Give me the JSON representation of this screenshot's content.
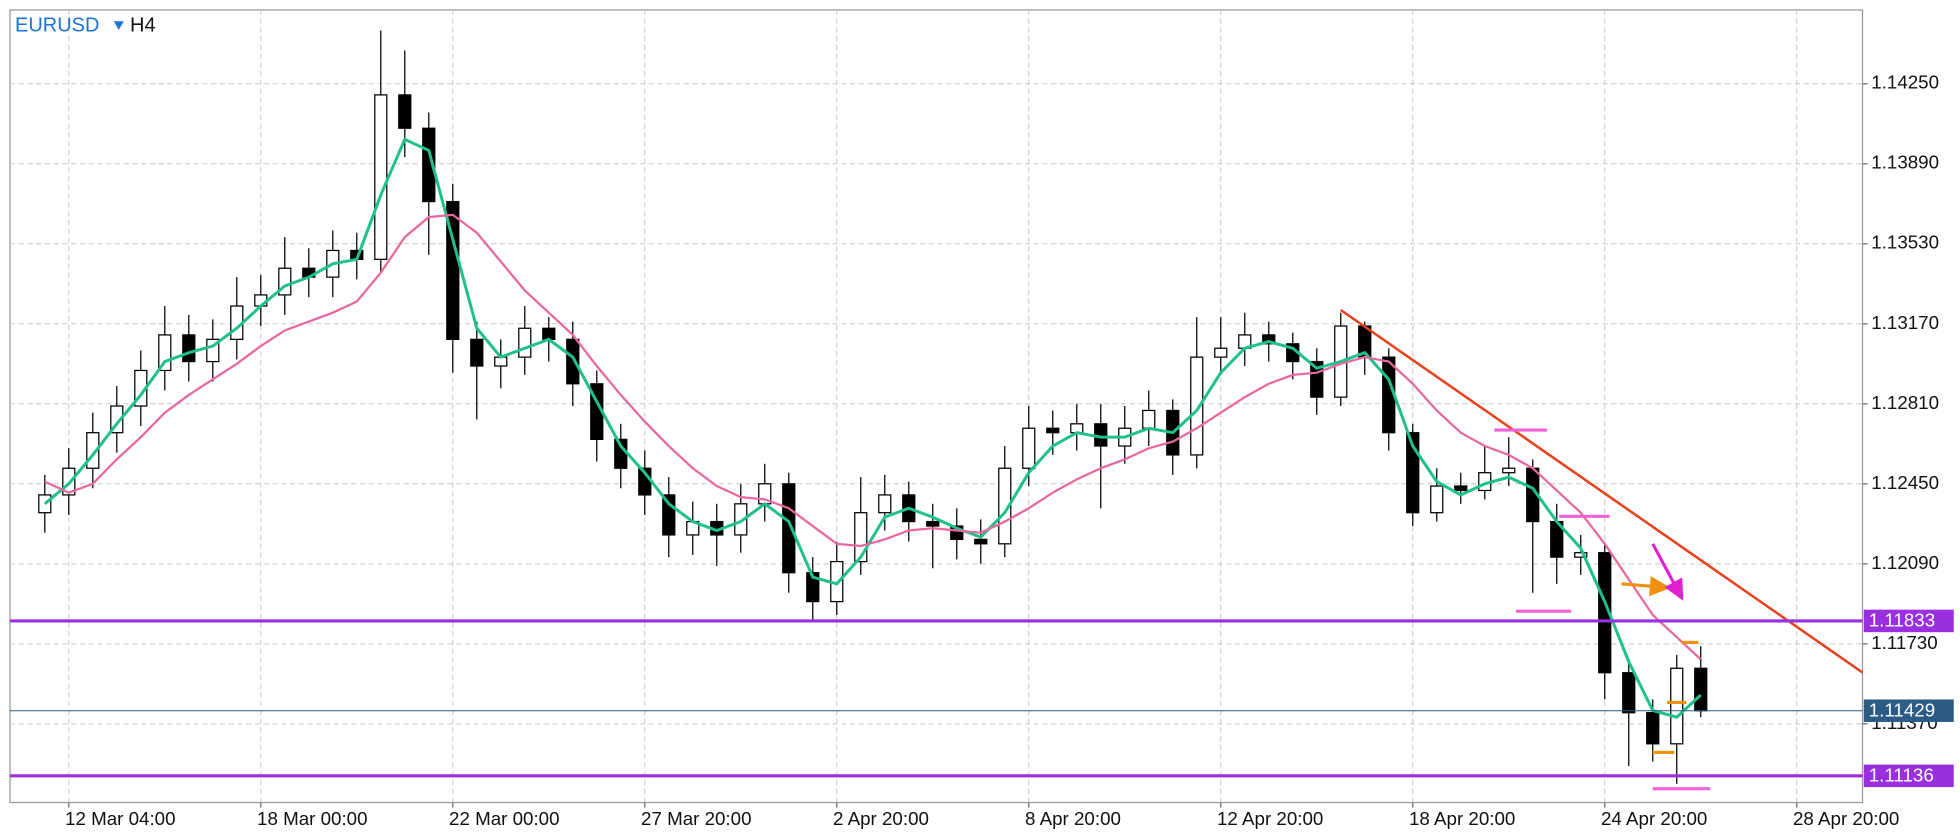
{
  "chart_data": {
    "type": "candlestick",
    "symbol": "EURUSD",
    "timeframe": "H4",
    "xlim": [
      -1.45,
      75.74
    ],
    "ylim": [
      1.11016,
      1.14582
    ],
    "grid": true,
    "xticks": [
      {
        "value": 1,
        "label": "12 Mar 04:00"
      },
      {
        "value": 9,
        "label": "18 Mar 00:00"
      },
      {
        "value": 17,
        "label": "22 Mar 00:00"
      },
      {
        "value": 25,
        "label": "27 Mar 20:00"
      },
      {
        "value": 33,
        "label": "2 Apr 20:00"
      },
      {
        "value": 41,
        "label": "8 Apr 20:00"
      },
      {
        "value": 49,
        "label": "12 Apr 20:00"
      },
      {
        "value": 57,
        "label": "18 Apr 20:00"
      },
      {
        "value": 65,
        "label": "24 Apr 20:00"
      },
      {
        "value": 73,
        "label": "28 Apr 20:00"
      }
    ],
    "yticks": [
      {
        "value": 1.1425,
        "label": "1.14250"
      },
      {
        "value": 1.1389,
        "label": "1.13890"
      },
      {
        "value": 1.1353,
        "label": "1.13530"
      },
      {
        "value": 1.1317,
        "label": "1.13170"
      },
      {
        "value": 1.1281,
        "label": "1.12810"
      },
      {
        "value": 1.1245,
        "label": "1.12450"
      },
      {
        "value": 1.1209,
        "label": "1.12090"
      },
      {
        "value": 1.1173,
        "label": "1.11730"
      },
      {
        "value": 1.1137,
        "label": "1.11370"
      }
    ],
    "up_color": "#ffffff",
    "down_color": "#000000",
    "candles": [
      {
        "o": 1.1232,
        "h": 1.1249,
        "l": 1.1223,
        "c": 1.124
      },
      {
        "o": 1.124,
        "h": 1.1261,
        "l": 1.1231,
        "c": 1.1252
      },
      {
        "o": 1.1252,
        "h": 1.1277,
        "l": 1.1243,
        "c": 1.1268
      },
      {
        "o": 1.1268,
        "h": 1.1289,
        "l": 1.1259,
        "c": 1.128
      },
      {
        "o": 1.128,
        "h": 1.1305,
        "l": 1.1271,
        "c": 1.1296
      },
      {
        "o": 1.1296,
        "h": 1.1325,
        "l": 1.1287,
        "c": 1.1312
      },
      {
        "o": 1.1312,
        "h": 1.1321,
        "l": 1.1291,
        "c": 1.13
      },
      {
        "o": 1.13,
        "h": 1.1319,
        "l": 1.1291,
        "c": 1.131
      },
      {
        "o": 1.131,
        "h": 1.1338,
        "l": 1.1301,
        "c": 1.1325
      },
      {
        "o": 1.1325,
        "h": 1.1339,
        "l": 1.1316,
        "c": 1.133
      },
      {
        "o": 1.133,
        "h": 1.1356,
        "l": 1.1321,
        "c": 1.1342
      },
      {
        "o": 1.1342,
        "h": 1.1351,
        "l": 1.1329,
        "c": 1.1338
      },
      {
        "o": 1.1338,
        "h": 1.1359,
        "l": 1.1329,
        "c": 1.135
      },
      {
        "o": 1.135,
        "h": 1.1358,
        "l": 1.1337,
        "c": 1.1346
      },
      {
        "o": 1.1346,
        "h": 1.1449,
        "l": 1.134,
        "c": 1.142
      },
      {
        "o": 1.142,
        "h": 1.144,
        "l": 1.1392,
        "c": 1.1405
      },
      {
        "o": 1.1405,
        "h": 1.1412,
        "l": 1.1348,
        "c": 1.1372
      },
      {
        "o": 1.1372,
        "h": 1.138,
        "l": 1.1295,
        "c": 1.131
      },
      {
        "o": 1.131,
        "h": 1.1318,
        "l": 1.1274,
        "c": 1.1298
      },
      {
        "o": 1.1298,
        "h": 1.131,
        "l": 1.1288,
        "c": 1.1302
      },
      {
        "o": 1.1302,
        "h": 1.1325,
        "l": 1.1294,
        "c": 1.1315
      },
      {
        "o": 1.1315,
        "h": 1.132,
        "l": 1.13,
        "c": 1.131
      },
      {
        "o": 1.131,
        "h": 1.1318,
        "l": 1.128,
        "c": 1.129
      },
      {
        "o": 1.129,
        "h": 1.1296,
        "l": 1.1255,
        "c": 1.1265
      },
      {
        "o": 1.1265,
        "h": 1.1272,
        "l": 1.1243,
        "c": 1.1252
      },
      {
        "o": 1.1252,
        "h": 1.126,
        "l": 1.1231,
        "c": 1.124
      },
      {
        "o": 1.124,
        "h": 1.1248,
        "l": 1.1212,
        "c": 1.1222
      },
      {
        "o": 1.1222,
        "h": 1.1237,
        "l": 1.1213,
        "c": 1.1228
      },
      {
        "o": 1.1228,
        "h": 1.1236,
        "l": 1.1208,
        "c": 1.1222
      },
      {
        "o": 1.1222,
        "h": 1.1245,
        "l": 1.1214,
        "c": 1.1236
      },
      {
        "o": 1.1236,
        "h": 1.1254,
        "l": 1.1228,
        "c": 1.1245
      },
      {
        "o": 1.1245,
        "h": 1.125,
        "l": 1.1196,
        "c": 1.1205
      },
      {
        "o": 1.1205,
        "h": 1.1212,
        "l": 1.1184,
        "c": 1.1192
      },
      {
        "o": 1.1192,
        "h": 1.1219,
        "l": 1.1186,
        "c": 1.121
      },
      {
        "o": 1.121,
        "h": 1.1248,
        "l": 1.1204,
        "c": 1.1232
      },
      {
        "o": 1.1232,
        "h": 1.1249,
        "l": 1.1224,
        "c": 1.124
      },
      {
        "o": 1.124,
        "h": 1.1246,
        "l": 1.1219,
        "c": 1.1228
      },
      {
        "o": 1.1228,
        "h": 1.1236,
        "l": 1.1207,
        "c": 1.1226
      },
      {
        "o": 1.1226,
        "h": 1.1234,
        "l": 1.1211,
        "c": 1.122
      },
      {
        "o": 1.122,
        "h": 1.1229,
        "l": 1.1209,
        "c": 1.1218
      },
      {
        "o": 1.1218,
        "h": 1.1262,
        "l": 1.1212,
        "c": 1.1252
      },
      {
        "o": 1.1252,
        "h": 1.128,
        "l": 1.1244,
        "c": 1.127
      },
      {
        "o": 1.127,
        "h": 1.1278,
        "l": 1.1258,
        "c": 1.1268
      },
      {
        "o": 1.1268,
        "h": 1.1281,
        "l": 1.126,
        "c": 1.1272
      },
      {
        "o": 1.1272,
        "h": 1.1281,
        "l": 1.1234,
        "c": 1.1262
      },
      {
        "o": 1.1262,
        "h": 1.128,
        "l": 1.1254,
        "c": 1.127
      },
      {
        "o": 1.127,
        "h": 1.1287,
        "l": 1.1262,
        "c": 1.1278
      },
      {
        "o": 1.1278,
        "h": 1.1283,
        "l": 1.1249,
        "c": 1.1258
      },
      {
        "o": 1.1258,
        "h": 1.132,
        "l": 1.1252,
        "c": 1.1302
      },
      {
        "o": 1.1302,
        "h": 1.132,
        "l": 1.1294,
        "c": 1.1306
      },
      {
        "o": 1.1306,
        "h": 1.1322,
        "l": 1.1298,
        "c": 1.1312
      },
      {
        "o": 1.1312,
        "h": 1.1318,
        "l": 1.13,
        "c": 1.1308
      },
      {
        "o": 1.1308,
        "h": 1.1313,
        "l": 1.1292,
        "c": 1.13
      },
      {
        "o": 1.13,
        "h": 1.1306,
        "l": 1.1276,
        "c": 1.1284
      },
      {
        "o": 1.1284,
        "h": 1.1322,
        "l": 1.128,
        "c": 1.1316
      },
      {
        "o": 1.1316,
        "h": 1.1318,
        "l": 1.1294,
        "c": 1.1302
      },
      {
        "o": 1.1302,
        "h": 1.1306,
        "l": 1.126,
        "c": 1.1268
      },
      {
        "o": 1.1268,
        "h": 1.1272,
        "l": 1.1226,
        "c": 1.1232
      },
      {
        "o": 1.1232,
        "h": 1.1252,
        "l": 1.1228,
        "c": 1.1244
      },
      {
        "o": 1.1244,
        "h": 1.125,
        "l": 1.1236,
        "c": 1.1242
      },
      {
        "o": 1.1242,
        "h": 1.1262,
        "l": 1.1238,
        "c": 1.125
      },
      {
        "o": 1.125,
        "h": 1.1266,
        "l": 1.1244,
        "c": 1.1252
      },
      {
        "o": 1.1252,
        "h": 1.1256,
        "l": 1.1196,
        "c": 1.1228
      },
      {
        "o": 1.1228,
        "h": 1.1236,
        "l": 1.12,
        "c": 1.1212
      },
      {
        "o": 1.1212,
        "h": 1.1222,
        "l": 1.1204,
        "c": 1.1214
      },
      {
        "o": 1.1214,
        "h": 1.1218,
        "l": 1.1148,
        "c": 1.116
      },
      {
        "o": 1.116,
        "h": 1.1166,
        "l": 1.1118,
        "c": 1.1142
      },
      {
        "o": 1.1142,
        "h": 1.1148,
        "l": 1.112,
        "c": 1.1128
      },
      {
        "o": 1.1128,
        "h": 1.1168,
        "l": 1.111,
        "c": 1.1162
      },
      {
        "o": 1.1162,
        "h": 1.1172,
        "l": 1.114,
        "c": 1.11429
      }
    ],
    "series": [
      {
        "color": "#1fc08e",
        "values": [
          1.1236,
          1.1245,
          1.1258,
          1.1272,
          1.1285,
          1.13,
          1.1304,
          1.1307,
          1.1315,
          1.1325,
          1.1334,
          1.1338,
          1.1344,
          1.1346,
          1.1375,
          1.14,
          1.1395,
          1.1355,
          1.1315,
          1.1302,
          1.1306,
          1.131,
          1.1302,
          1.1282,
          1.1262,
          1.125,
          1.1236,
          1.1228,
          1.1224,
          1.1228,
          1.1236,
          1.1228,
          1.1203,
          1.12,
          1.1212,
          1.123,
          1.1234,
          1.123,
          1.1225,
          1.1221,
          1.1232,
          1.125,
          1.1262,
          1.1268,
          1.1266,
          1.1266,
          1.127,
          1.1268,
          1.1278,
          1.1295,
          1.1306,
          1.1309,
          1.1306,
          1.1297,
          1.13,
          1.1304,
          1.1292,
          1.1262,
          1.1246,
          1.124,
          1.1245,
          1.1248,
          1.1243,
          1.1228,
          1.1216,
          1.1192,
          1.1165,
          1.1143,
          1.114,
          1.115
        ]
      },
      {
        "color": "#e8679f",
        "values": [
          1.1246,
          1.1241,
          1.1245,
          1.1256,
          1.1266,
          1.1277,
          1.1285,
          1.1292,
          1.1299,
          1.1307,
          1.1314,
          1.1318,
          1.1322,
          1.1327,
          1.134,
          1.1356,
          1.1365,
          1.1366,
          1.1358,
          1.1345,
          1.1332,
          1.1322,
          1.1312,
          1.1298,
          1.1285,
          1.1273,
          1.1262,
          1.1252,
          1.1244,
          1.1239,
          1.1238,
          1.1234,
          1.1226,
          1.1218,
          1.1217,
          1.122,
          1.1224,
          1.1225,
          1.1224,
          1.1223,
          1.1228,
          1.1234,
          1.1241,
          1.1247,
          1.1252,
          1.1256,
          1.1261,
          1.1264,
          1.127,
          1.1277,
          1.1284,
          1.129,
          1.1294,
          1.1295,
          1.1299,
          1.1302,
          1.13,
          1.129,
          1.1278,
          1.1268,
          1.1262,
          1.1258,
          1.1252,
          1.1242,
          1.1232,
          1.1218,
          1.1202,
          1.1186,
          1.1176,
          1.1166
        ]
      }
    ],
    "levels": [
      {
        "value": 1.11833,
        "color": "#9a2fe0",
        "width": 2.5
      },
      {
        "value": 1.11136,
        "color": "#9a2fe0",
        "width": 2.5
      },
      {
        "value": 1.11429,
        "color": "#2c5b86",
        "width": 0.8
      }
    ],
    "trendline": {
      "x": [
        54,
        75.74
      ],
      "y": [
        1.13232,
        1.11601
      ],
      "color": "#e8401c"
    },
    "markers": [
      {
        "x": [
          60.4,
          62.6
        ],
        "y": 1.12692,
        "color": "#f062d8"
      },
      {
        "x": [
          63.1,
          65.2
        ],
        "y": 1.12304,
        "color": "#f062d8"
      },
      {
        "x": [
          61.3,
          63.6
        ],
        "y": 1.11877,
        "color": "#f062d8"
      },
      {
        "x": [
          67.0,
          69.4
        ],
        "y": 1.11078,
        "color": "#f062d8"
      },
      {
        "x": [
          67.0,
          67.9
        ],
        "y": 1.11241,
        "color": "#f0900f"
      },
      {
        "x": [
          67.6,
          68.4
        ],
        "y": 1.11466,
        "color": "#f0900f"
      },
      {
        "x": [
          68.2,
          68.9
        ],
        "y": 1.11736,
        "color": "#f0900f"
      }
    ],
    "arrows": [
      {
        "x": [
          65.7,
          67.6
        ],
        "y": [
          1.12,
          1.11983
        ],
        "color": "#f0900f"
      },
      {
        "x": [
          67.0,
          68.2
        ],
        "y": [
          1.1218,
          1.11938
        ],
        "color": "#e020d0"
      }
    ]
  }
}
